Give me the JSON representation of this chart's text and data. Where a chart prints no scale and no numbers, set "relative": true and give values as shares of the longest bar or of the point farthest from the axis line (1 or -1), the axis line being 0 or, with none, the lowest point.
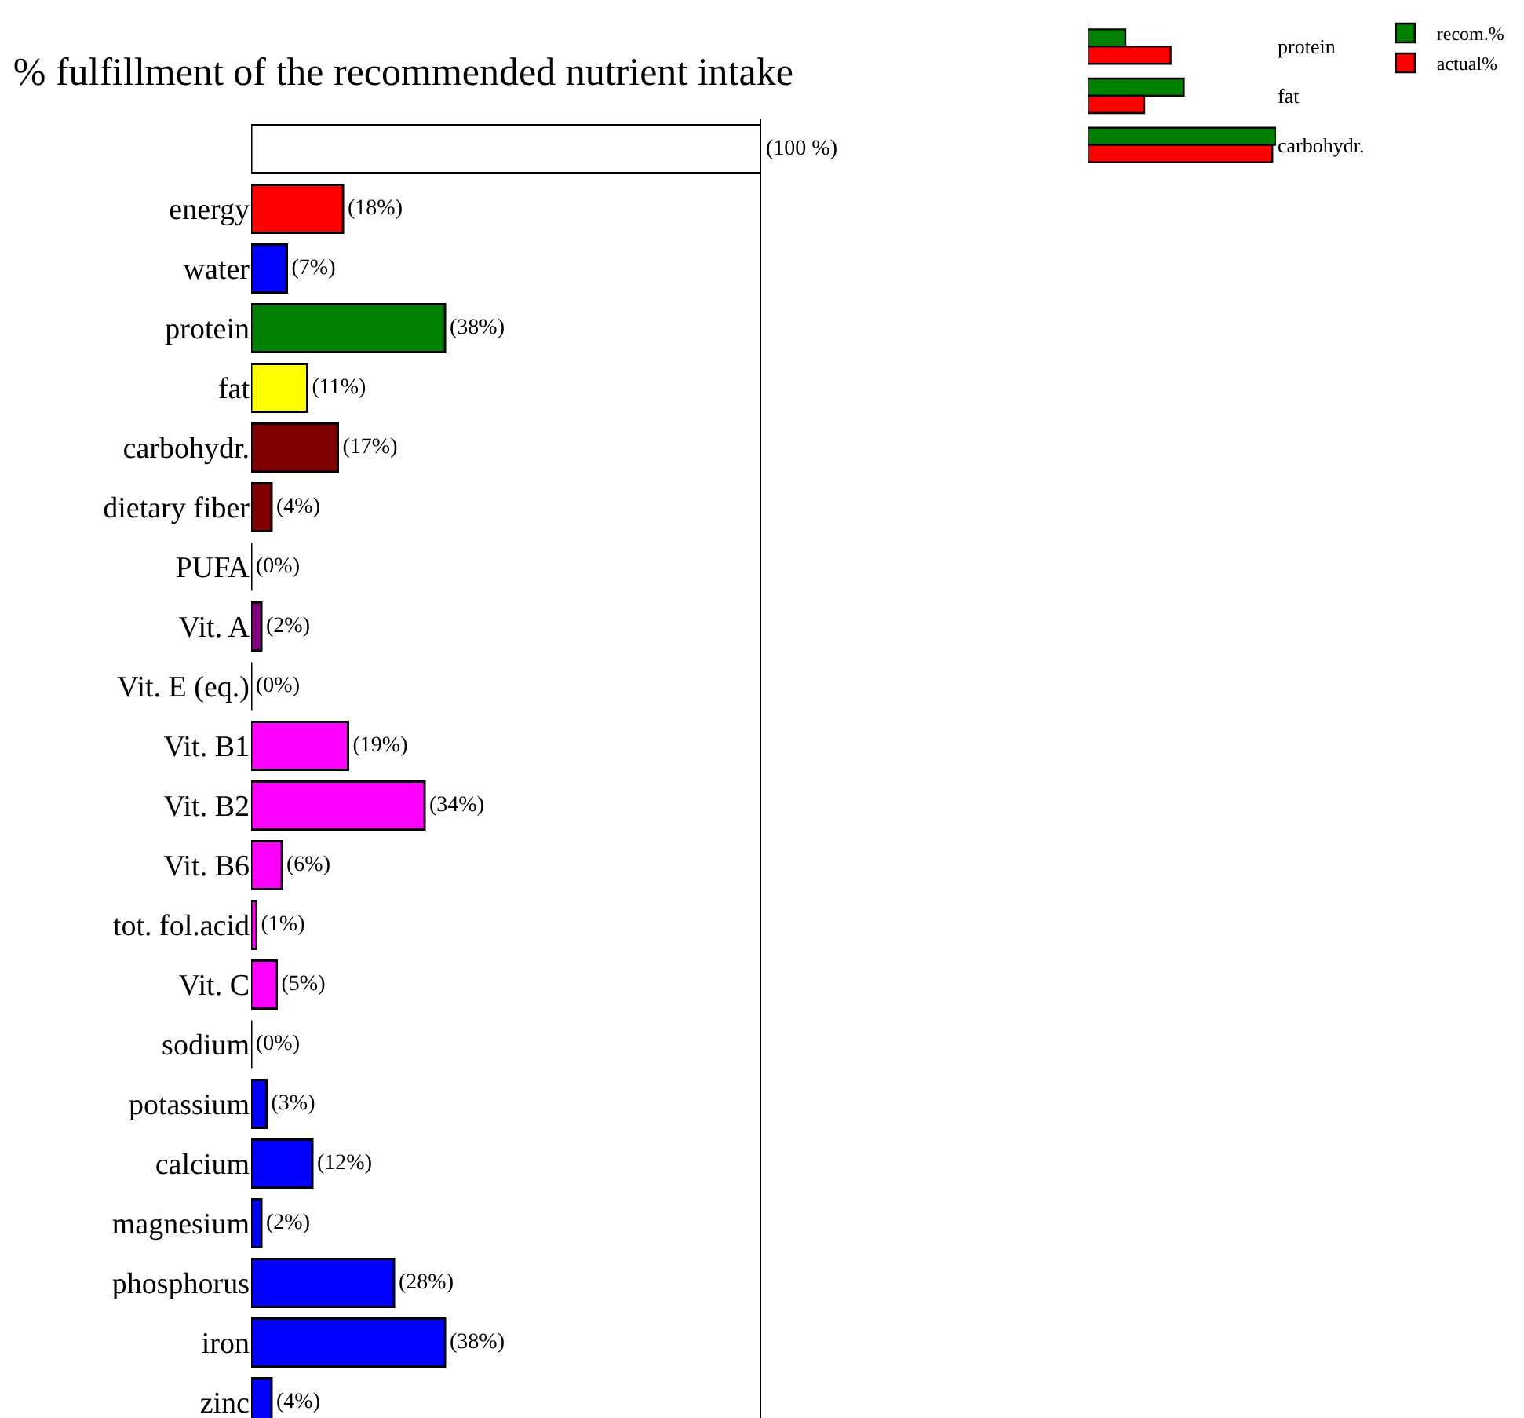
{
  "chart_data": [
    {
      "type": "bar",
      "orientation": "horizontal",
      "title": "% fulfillment of the recommended nutrient intake",
      "categories": [
        null,
        "energy",
        "water",
        "protein",
        "fat",
        "carbohydr.",
        "dietary fiber",
        "PUFA",
        "Vit. A",
        "Vit. E (eq.)",
        "Vit. B1",
        "Vit. B2",
        "Vit. B6",
        "tot. fol.acid",
        "Vit. C",
        "sodium",
        "potassium",
        "calcium",
        "magnesium",
        "phosphorus",
        "iron",
        "zinc"
      ],
      "values": [
        100,
        18,
        7,
        38,
        11,
        17,
        4,
        0,
        2,
        0,
        19,
        34,
        6,
        1,
        5,
        0,
        3,
        12,
        2,
        28,
        38,
        4
      ],
      "value_labels": [
        "(100 %)",
        "(18%)",
        "(7%)",
        "(38%)",
        "(11%)",
        "(17%)",
        "(4%)",
        "(0%)",
        "(2%)",
        "(0%)",
        "(19%)",
        "(34%)",
        "(6%)",
        "(1%)",
        "(5%)",
        "(0%)",
        "(3%)",
        "(12%)",
        "(2%)",
        "(28%)",
        "(38%)",
        "(4%)"
      ],
      "colors": [
        "#ffffff",
        "#ff0000",
        "#0000ff",
        "#008000",
        "#ffff00",
        "#800000",
        "#800000",
        "#000000",
        "#800080",
        "#000000",
        "#ff00ff",
        "#ff00ff",
        "#ff00ff",
        "#ff00ff",
        "#ff00ff",
        "#000000",
        "#0000ff",
        "#0000ff",
        "#0000ff",
        "#0000ff",
        "#0000ff",
        "#0000ff"
      ],
      "xlim": [
        0,
        100
      ],
      "tick_labels": "y",
      "grid": false,
      "legend": false,
      "ref_lines": [
        {
          "axis": "x",
          "value": 100,
          "color": "#000000"
        }
      ]
    },
    {
      "type": "bar",
      "orientation": "horizontal",
      "relative": true,
      "categories": [
        "protein",
        "fat",
        "carbohydr."
      ],
      "series": [
        {
          "name": "recom.%",
          "color": "#008000",
          "values": [
            0.2,
            0.51,
            1
          ]
        },
        {
          "name": "actual%",
          "color": "#ff0000",
          "values": [
            0.44,
            0.3,
            0.98
          ]
        }
      ],
      "tick_labels": false,
      "legend": "top right"
    }
  ]
}
